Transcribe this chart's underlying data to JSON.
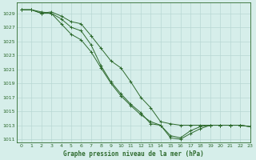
{
  "title": "Graphe pression niveau de la mer (hPa)",
  "background_color": "#d6eeea",
  "grid_color": "#b8d8d4",
  "line_color": "#2d6a2d",
  "xlim": [
    -0.5,
    23
  ],
  "ylim": [
    1010.5,
    1030.5
  ],
  "xticks": [
    0,
    1,
    2,
    3,
    4,
    5,
    6,
    7,
    8,
    9,
    10,
    11,
    12,
    13,
    14,
    15,
    16,
    17,
    18,
    19,
    20,
    21,
    22,
    23
  ],
  "yticks": [
    1011,
    1013,
    1015,
    1017,
    1019,
    1021,
    1023,
    1025,
    1027,
    1029
  ],
  "series": [
    [
      1029.5,
      1029.5,
      1029.0,
      1029.2,
      1028.6,
      1027.8,
      1027.5,
      1025.8,
      1024.0,
      1022.2,
      1021.2,
      1019.2,
      1017.0,
      1015.5,
      1013.5,
      1013.2,
      1013.0,
      1013.0,
      1013.0,
      1013.0,
      1013.0,
      1013.0,
      1013.0,
      1012.8
    ],
    [
      1029.5,
      1029.5,
      1029.2,
      1029.0,
      1028.2,
      1027.0,
      1026.5,
      1024.5,
      1021.5,
      1019.2,
      1017.5,
      1016.0,
      1014.8,
      1013.2,
      1013.0,
      1011.5,
      1011.2,
      1012.2,
      1012.8,
      1013.0,
      1013.0,
      1013.0,
      1013.0,
      1012.8
    ],
    [
      1029.5,
      1029.5,
      1029.0,
      1029.0,
      1027.5,
      1026.0,
      1025.2,
      1023.5,
      1021.2,
      1019.0,
      1017.2,
      1015.8,
      1014.5,
      1013.5,
      1013.0,
      1011.2,
      1011.0,
      1011.8,
      1012.5,
      1013.0,
      1013.0,
      1013.0,
      1013.0,
      1012.8
    ]
  ]
}
